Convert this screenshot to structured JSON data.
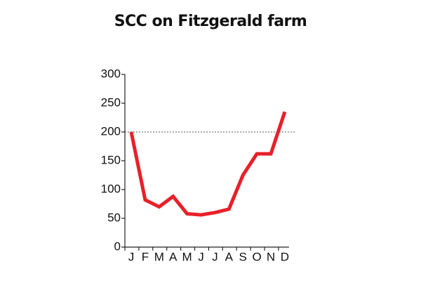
{
  "chart_data": {
    "type": "line",
    "title": "SCC on Fitzgerald farm",
    "categories": [
      "J",
      "F",
      "M",
      "A",
      "M",
      "J",
      "J",
      "A",
      "S",
      "O",
      "N",
      "D"
    ],
    "values": [
      200,
      82,
      70,
      88,
      58,
      56,
      60,
      66,
      125,
      162,
      162,
      235
    ],
    "color": "#e8202a",
    "ylim": [
      0,
      300
    ],
    "yticks": [
      0,
      50,
      100,
      150,
      200,
      250,
      300
    ],
    "reference_line": 200,
    "grid": false
  }
}
